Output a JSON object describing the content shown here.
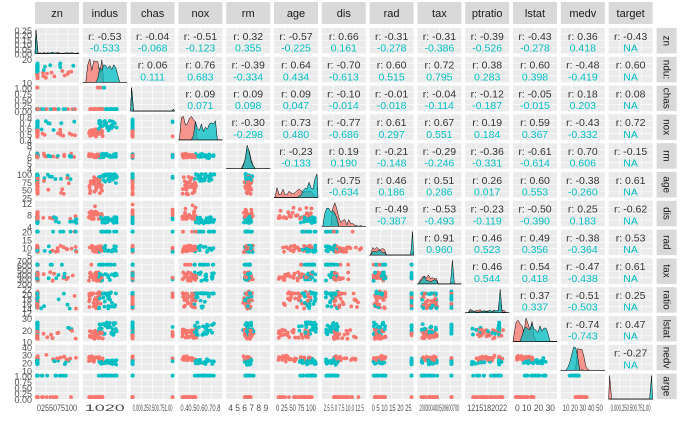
{
  "chart_data": {
    "type": "scatter",
    "title": "",
    "variables": [
      "zn",
      "indus",
      "chas",
      "nox",
      "rm",
      "age",
      "dis",
      "rad",
      "tax",
      "ptratio",
      "lstat",
      "medv",
      "target"
    ],
    "strip_labels": {
      "top": [
        "zn",
        "indus",
        "chas",
        "nox",
        "rm",
        "age",
        "dis",
        "rad",
        "tax",
        "ptratio",
        "lstat",
        "medv",
        "target"
      ],
      "right": [
        "zn",
        "ndu:",
        "chas",
        "nox",
        "rm",
        "age",
        "dis",
        "rad",
        "tax",
        "ratio",
        "lstat",
        "nedv",
        "arge"
      ]
    },
    "groups": [
      {
        "name": "",
        "color": "#F8766D"
      },
      {
        "name": "",
        "color": "#00BFC4"
      }
    ],
    "corr": [
      [
        "",
        "-0.53",
        "-0.04",
        "-0.51",
        "0.32",
        "-0.57",
        "0.66",
        "-0.31",
        "-0.31",
        "-0.39",
        "-0.43",
        "0.36",
        "-0.43"
      ],
      [
        "",
        "",
        "0.06",
        "0.76",
        "-0.39",
        "0.64",
        "-0.70",
        "0.60",
        "0.72",
        "0.38",
        "0.60",
        "-0.48",
        "0.60"
      ],
      [
        "",
        "",
        "",
        "0.09",
        "0.09",
        "0.09",
        "-0.10",
        "-0.01",
        "-0.04",
        "-0.12",
        "-0.05",
        "0.18",
        "0.08"
      ],
      [
        "",
        "",
        "",
        "",
        "-0.30",
        "0.73",
        "-0.77",
        "0.61",
        "0.67",
        "0.19",
        "0.59",
        "-0.43",
        "0.72"
      ],
      [
        "",
        "",
        "",
        "",
        "",
        "-0.23",
        "0.19",
        "-0.21",
        "-0.29",
        "-0.36",
        "-0.61",
        "0.70",
        "-0.15"
      ],
      [
        "",
        "",
        "",
        "",
        "",
        "",
        "-0.75",
        "0.46",
        "0.51",
        "0.26",
        "0.60",
        "-0.38",
        "0.61"
      ],
      [
        "",
        "",
        "",
        "",
        "",
        "",
        "",
        "-0.49",
        "-0.53",
        "-0.23",
        "-0.50",
        "0.25",
        "-0.62"
      ],
      [
        "",
        "",
        "",
        "",
        "",
        "",
        "",
        "",
        "0.91",
        "0.46",
        "0.49",
        "-0.38",
        "0.53"
      ],
      [
        "",
        "",
        "",
        "",
        "",
        "",
        "",
        "",
        "",
        "0.46",
        "0.54",
        "-0.47",
        "0.61"
      ],
      [
        "",
        "",
        "",
        "",
        "",
        "",
        "",
        "",
        "",
        "",
        "0.37",
        "-0.51",
        "0.25"
      ],
      [
        "",
        "",
        "",
        "",
        "",
        "",
        "",
        "",
        "",
        "",
        "",
        "-0.74",
        "0.47"
      ],
      [
        "",
        "",
        "",
        "",
        "",
        "",
        "",
        "",
        "",
        "",
        "",
        "",
        "-0.27"
      ],
      [
        "",
        "",
        "",
        "",
        "",
        "",
        "",
        "",
        "",
        "",
        "",
        "",
        ""
      ]
    ],
    "corr_cut": [
      [
        "",
        "-0.533",
        "-0.068",
        "-0.123",
        "0.355",
        "-0.225",
        "0.161",
        "-0.278",
        "-0.386",
        "-0.526",
        "-0.278",
        "0.418",
        "NA"
      ],
      [
        "",
        "",
        "0.111",
        "0.683",
        "-0.334",
        "0.434",
        "-0.613",
        "0.515",
        "0.795",
        "0.283",
        "0.398",
        "-0.419",
        "NA"
      ],
      [
        "",
        "",
        "",
        "0.071",
        "0.098",
        "0.047",
        "-0.014",
        "-0.018",
        "-0.114",
        "-0.187",
        "-0.015",
        "0.203",
        "NA"
      ],
      [
        "",
        "",
        "",
        "",
        "-0.298",
        "0.480",
        "-0.686",
        "0.297",
        "0.551",
        "0.184",
        "0.367",
        "-0.332",
        "NA"
      ],
      [
        "",
        "",
        "",
        "",
        "",
        "-0.133",
        "0.190",
        "-0.148",
        "-0.246",
        "-0.331",
        "-0.614",
        "0.606",
        "NA"
      ],
      [
        "",
        "",
        "",
        "",
        "",
        "",
        "-0.634",
        "0.186",
        "0.286",
        "0.017",
        "0.553",
        "-0.260",
        "NA"
      ],
      [
        "",
        "",
        "",
        "",
        "",
        "",
        "",
        "-0.387",
        "-0.493",
        "-0.119",
        "-0.390",
        "0.183",
        "NA"
      ],
      [
        "",
        "",
        "",
        "",
        "",
        "",
        "",
        "",
        "0.960",
        "0.523",
        "0.356",
        "-0.364",
        "NA"
      ],
      [
        "",
        "",
        "",
        "",
        "",
        "",
        "",
        "",
        "",
        "0.544",
        "0.418",
        "-0.438",
        "NA"
      ],
      [
        "",
        "",
        "",
        "",
        "",
        "",
        "",
        "",
        "",
        "",
        "0.337",
        "-0.503",
        "NA"
      ],
      [
        "",
        "",
        "",
        "",
        "",
        "",
        "",
        "",
        "",
        "",
        "",
        "-0.743",
        "NA"
      ],
      [
        "",
        "",
        "",
        "",
        "",
        "",
        "",
        "",
        "",
        "",
        "",
        "",
        "NA"
      ],
      [
        "",
        "",
        "",
        "",
        "",
        "",
        "",
        "",
        "",
        "",
        "",
        "",
        ""
      ]
    ],
    "row_ticks": [
      [
        "0.25",
        "0.20",
        "0.15",
        "0.10",
        "0.05",
        "0.00"
      ],
      [
        "20",
        "10"
      ],
      [
        "1.00",
        "0.75",
        "0.50",
        "0.25",
        "0.00"
      ],
      [
        "0.8",
        "0.7",
        "0.6",
        "0.5",
        "0.4"
      ],
      [
        "8",
        "7",
        "6",
        "5",
        "4"
      ],
      [
        "100",
        "75",
        "50",
        "25"
      ],
      [
        "12",
        "8",
        "4"
      ],
      [
        "20",
        "15",
        "10",
        "5"
      ],
      [
        "700",
        "600",
        "500",
        "400",
        "300",
        "200"
      ],
      [
        "22",
        "20",
        "18",
        "16",
        "14",
        "12"
      ],
      [
        "30",
        "20",
        "10"
      ],
      [
        "40",
        "30",
        "20",
        "10"
      ],
      [
        "1.00",
        "0.75",
        "0.50",
        "0.25",
        "0.00"
      ]
    ],
    "col_ticks": [
      "0255075100",
      "1020",
      "0.000.250.500.751.00",
      "0.40.50.60.70.8",
      "4 5 6 7 8 9",
      "0 25 50 75 100",
      "2.5 5.0 7.5 10.0 12.5",
      "0 5 10 15 20 25",
      "200300400500600700",
      "1215182022",
      "0 10 20 30",
      "10 20 30 40 50",
      "0.000.250.500.751.00"
    ],
    "grid": true,
    "legend": "none"
  }
}
